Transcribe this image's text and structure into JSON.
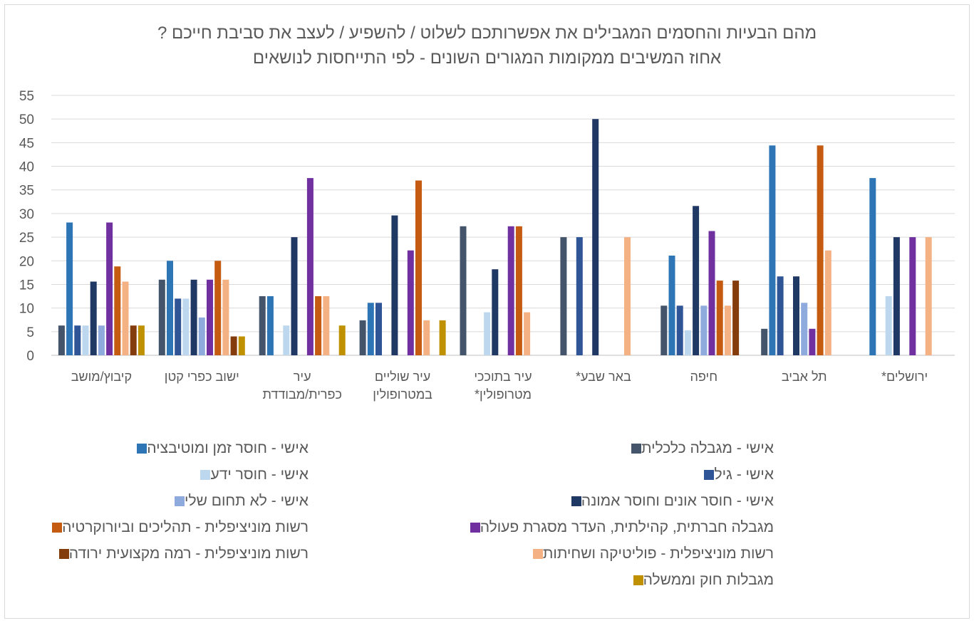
{
  "chart_data": {
    "type": "bar",
    "title": "מהם הבעיות והחסמים המגבילים את אפשרותכם לשלוט / להשפיע / לעצב את סביבת חייכם ?",
    "subtitle": "אחוז המשיבים ממקומות המגורים השונים - לפי התייחסות לנושאים",
    "ylim": [
      0,
      55
    ],
    "yticks": [
      "0",
      "5",
      "10",
      "15",
      "20",
      "25",
      "30",
      "35",
      "40",
      "45",
      "50",
      "55"
    ],
    "grid": true,
    "legend_position": "bottom",
    "categories": [
      [
        "קיבוץ/מושב"
      ],
      [
        "ישוב כפרי קטן"
      ],
      [
        "עיר",
        "כפרית/מבודדת"
      ],
      [
        "עיר שוליים",
        "במטרופולין"
      ],
      [
        "עיר בתוככי",
        "מטרופולין*"
      ],
      [
        "באר שבע*"
      ],
      [
        "חיפה"
      ],
      [
        "תל אביב"
      ],
      [
        "ירושלים*"
      ]
    ],
    "series": [
      {
        "name": "אישי - מגבלה כלכלית",
        "color": "#44546a",
        "values": [
          6.3,
          16,
          12.5,
          7.4,
          27.3,
          25,
          10.5,
          5.6,
          0
        ]
      },
      {
        "name": "אישי - חוסר זמן ומוטיבציה",
        "color": "#2e75b6",
        "values": [
          28.1,
          20,
          12.5,
          11.1,
          0,
          0,
          21.1,
          44.4,
          37.5
        ]
      },
      {
        "name": "אישי - גיל",
        "color": "#2f5597",
        "values": [
          6.3,
          12,
          0,
          11.1,
          0,
          25,
          10.5,
          16.7,
          0
        ]
      },
      {
        "name": "אישי - חוסר ידע",
        "color": "#bdd7ee",
        "values": [
          6.3,
          12,
          6.3,
          0,
          9.1,
          0,
          5.3,
          0,
          12.5
        ]
      },
      {
        "name": "אישי - חוסר אונים וחוסר אמונה",
        "color": "#203864",
        "values": [
          15.6,
          16,
          25,
          29.6,
          18.2,
          50,
          31.6,
          16.7,
          25
        ]
      },
      {
        "name": "אישי - לא תחום שלי",
        "color": "#8faadc",
        "values": [
          6.3,
          8,
          0,
          0,
          0,
          0,
          10.5,
          11.1,
          0
        ]
      },
      {
        "name": "מגבלה חברתית, קהילתית, העדר מסגרת פעולה",
        "color": "#7030a0",
        "values": [
          28.1,
          16,
          37.5,
          22.2,
          27.3,
          0,
          26.3,
          5.6,
          25
        ]
      },
      {
        "name": "רשות מוניציפלית - תהליכים וביורוקרטיה",
        "color": "#c55a11",
        "values": [
          18.8,
          20,
          12.5,
          37,
          27.3,
          0,
          15.8,
          44.4,
          0
        ]
      },
      {
        "name": "רשות מוניציפלית - פוליטיקה ושחיתות",
        "color": "#f4b183",
        "values": [
          15.6,
          16,
          12.5,
          7.4,
          9.1,
          25,
          10.5,
          22.2,
          25
        ]
      },
      {
        "name": "רשות מוניציפלית - רמה מקצועית ירודה",
        "color": "#843c0c",
        "values": [
          6.3,
          4,
          0,
          0,
          0,
          0,
          15.8,
          0,
          0
        ]
      },
      {
        "name": "מגבלות חוק וממשלה",
        "color": "#bf9000",
        "values": [
          6.3,
          4,
          6.3,
          7.4,
          0,
          0,
          0,
          0,
          0
        ]
      }
    ]
  }
}
